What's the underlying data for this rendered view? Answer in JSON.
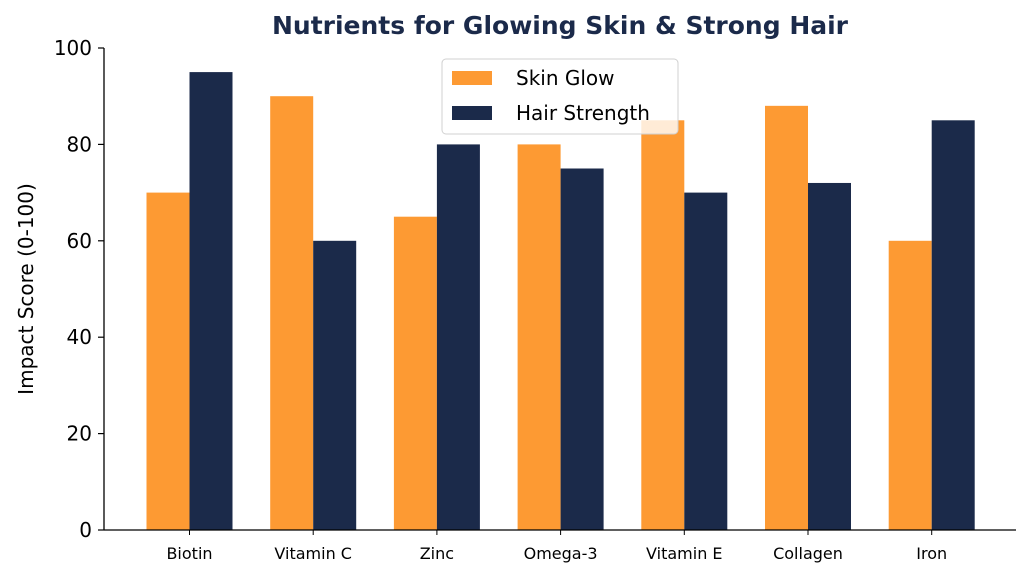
{
  "chart_data": {
    "type": "bar",
    "title": "Nutrients for Glowing Skin & Strong Hair",
    "xlabel": "",
    "ylabel": "Impact Score (0-100)",
    "ylim": [
      0,
      100
    ],
    "yticks": [
      "0",
      "20",
      "40",
      "60",
      "80",
      "100"
    ],
    "categories": [
      "Biotin",
      "Vitamin C",
      "Zinc",
      "Omega-3",
      "Vitamin E",
      "Collagen",
      "Iron"
    ],
    "series": [
      {
        "name": "Skin Glow",
        "color": "#FD9A33",
        "values": [
          70,
          90,
          65,
          80,
          85,
          88,
          60
        ]
      },
      {
        "name": "Hair Strength",
        "color": "#1B2A4A",
        "values": [
          95,
          60,
          80,
          75,
          70,
          72,
          85
        ]
      }
    ],
    "title_color": "#1B2A4A",
    "grid": false,
    "legend_position": "top-center"
  }
}
